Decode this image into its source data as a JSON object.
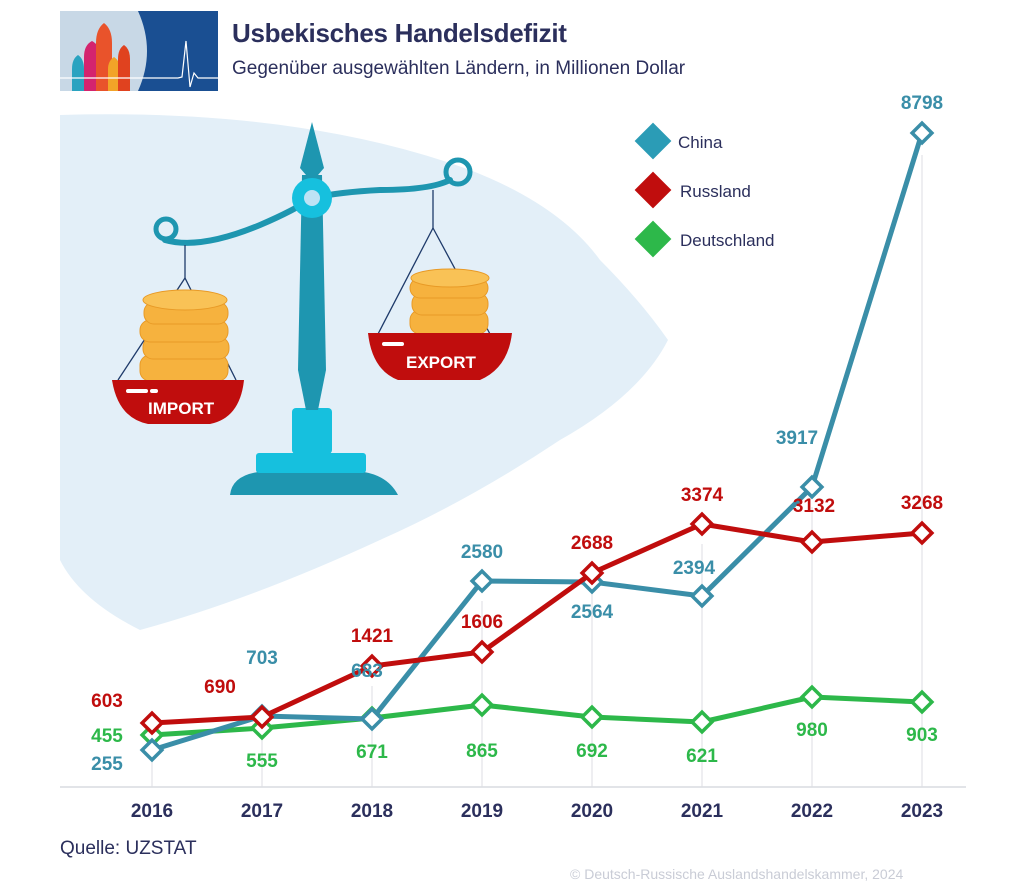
{
  "header": {
    "title": "Usbekisches Handelsdefizit",
    "subtitle": "Gegenüber ausgewählten Ländern, in Millionen  Dollar"
  },
  "illustration": {
    "left_pan_label": "IMPORT",
    "right_pan_label": "EXPORT"
  },
  "footer": {
    "source": "Quelle: UZSTAT",
    "copyright": "© Deutsch-Russische Auslandshandelskammer, 2024"
  },
  "colors": {
    "china": "#3a8ea8",
    "russland": "#c00d0d",
    "deutschland": "#2db84a",
    "text": "#2b2f5c",
    "blob": "#e3eff8"
  },
  "chart_data": {
    "type": "line",
    "title": "Usbekisches Handelsdefizit",
    "subtitle": "Gegenüber ausgewählten Ländern, in Millionen  Dollar",
    "xlabel": "",
    "ylabel": "Millionen Dollar",
    "categories": [
      "2016",
      "2017",
      "2018",
      "2019",
      "2020",
      "2021",
      "2022",
      "2023"
    ],
    "series": [
      {
        "name": "China",
        "color": "#3a8ea8",
        "values": [
          255,
          703,
          683,
          2580,
          2564,
          2394,
          3917,
          8798
        ]
      },
      {
        "name": "Russland",
        "color": "#c00d0d",
        "values": [
          603,
          690,
          1421,
          1606,
          2688,
          3374,
          3132,
          3268
        ]
      },
      {
        "name": "Deutschland",
        "color": "#2db84a",
        "values": [
          455,
          555,
          671,
          865,
          692,
          621,
          980,
          903
        ]
      }
    ],
    "legend": [
      "China",
      "Russland",
      "Deutschland"
    ],
    "legend_position": "top-right",
    "grid": false,
    "ylim": [
      0,
      9000
    ],
    "source": "UZSTAT"
  }
}
